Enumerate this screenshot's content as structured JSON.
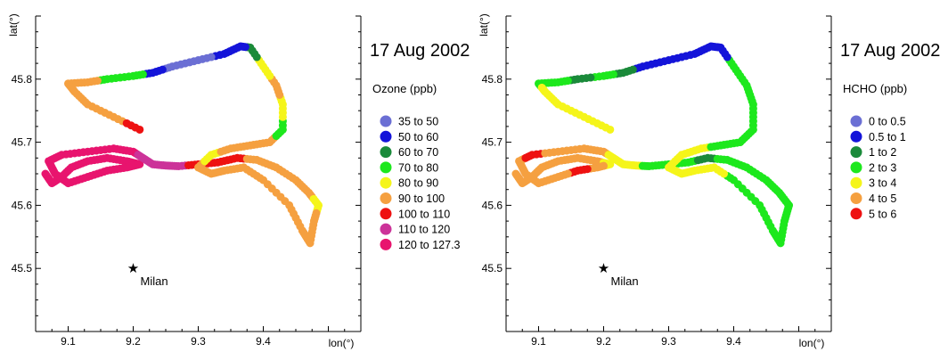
{
  "chart_data": [
    {
      "type": "scatter",
      "title": "17 Aug 2002",
      "xlabel": "lon(°)",
      "ylabel": "lat(°)",
      "xlim": [
        9.05,
        9.55
      ],
      "ylim": [
        45.4,
        45.9
      ],
      "xticks": [
        "9.1",
        "9.2",
        "9.3",
        "9.4"
      ],
      "yticks": [
        "45.5",
        "45.6",
        "45.7",
        "45.8"
      ],
      "legend_title": "Ozone (ppb)",
      "legend": [
        {
          "label": "35 to 50",
          "color": "#6b6fd4"
        },
        {
          "label": "50 to 60",
          "color": "#1414d9"
        },
        {
          "label": "60 to 70",
          "color": "#1a8a3a"
        },
        {
          "label": "70 to 80",
          "color": "#1de81d"
        },
        {
          "label": "80 to 90",
          "color": "#f5f51a"
        },
        {
          "label": "90 to 100",
          "color": "#f5a040"
        },
        {
          "label": "100 to 110",
          "color": "#ee1111"
        },
        {
          "label": "110 to 120",
          "color": "#cc3399"
        },
        {
          "label": "120 to 127.3",
          "color": "#e8146e"
        }
      ],
      "marker": {
        "label": "Milan",
        "lon": 9.2,
        "lat": 45.5
      },
      "track": [
        {
          "lon": 9.065,
          "lat": 45.65,
          "color": "#e8146e"
        },
        {
          "lon": 9.075,
          "lat": 45.635,
          "color": "#e8146e"
        },
        {
          "lon": 9.09,
          "lat": 45.645,
          "color": "#e8146e"
        },
        {
          "lon": 9.105,
          "lat": 45.66,
          "color": "#e8146e"
        },
        {
          "lon": 9.13,
          "lat": 45.67,
          "color": "#e8146e"
        },
        {
          "lon": 9.16,
          "lat": 45.675,
          "color": "#e8146e"
        },
        {
          "lon": 9.19,
          "lat": 45.67,
          "color": "#e8146e"
        },
        {
          "lon": 9.21,
          "lat": 45.665,
          "color": "#e8146e"
        },
        {
          "lon": 9.19,
          "lat": 45.66,
          "color": "#e8146e"
        },
        {
          "lon": 9.16,
          "lat": 45.655,
          "color": "#e8146e"
        },
        {
          "lon": 9.13,
          "lat": 45.645,
          "color": "#e8146e"
        },
        {
          "lon": 9.1,
          "lat": 45.635,
          "color": "#e8146e"
        },
        {
          "lon": 9.08,
          "lat": 45.65,
          "color": "#e8146e"
        },
        {
          "lon": 9.07,
          "lat": 45.67,
          "color": "#e8146e"
        },
        {
          "lon": 9.09,
          "lat": 45.68,
          "color": "#e8146e"
        },
        {
          "lon": 9.13,
          "lat": 45.685,
          "color": "#e8146e"
        },
        {
          "lon": 9.17,
          "lat": 45.69,
          "color": "#e8146e"
        },
        {
          "lon": 9.2,
          "lat": 45.685,
          "color": "#e8146e"
        },
        {
          "lon": 9.215,
          "lat": 45.675,
          "color": "#cc3399"
        },
        {
          "lon": 9.23,
          "lat": 45.665,
          "color": "#cc3399"
        },
        {
          "lon": 9.25,
          "lat": 45.663,
          "color": "#cc3399"
        },
        {
          "lon": 9.27,
          "lat": 45.662,
          "color": "#cc3399"
        },
        {
          "lon": 9.3,
          "lat": 45.665,
          "color": "#ee1111"
        },
        {
          "lon": 9.33,
          "lat": 45.668,
          "color": "#ee1111"
        },
        {
          "lon": 9.36,
          "lat": 45.675,
          "color": "#ee1111"
        },
        {
          "lon": 9.39,
          "lat": 45.672,
          "color": "#f5a040"
        },
        {
          "lon": 9.42,
          "lat": 45.66,
          "color": "#f5a040"
        },
        {
          "lon": 9.45,
          "lat": 45.64,
          "color": "#f5a040"
        },
        {
          "lon": 9.47,
          "lat": 45.62,
          "color": "#f5a040"
        },
        {
          "lon": 9.485,
          "lat": 45.6,
          "color": "#f5f51a"
        },
        {
          "lon": 9.478,
          "lat": 45.575,
          "color": "#f5a040"
        },
        {
          "lon": 9.472,
          "lat": 45.54,
          "color": "#f5a040"
        },
        {
          "lon": 9.46,
          "lat": 45.56,
          "color": "#f5a040"
        },
        {
          "lon": 9.44,
          "lat": 45.6,
          "color": "#f5a040"
        },
        {
          "lon": 9.4,
          "lat": 45.64,
          "color": "#f5a040"
        },
        {
          "lon": 9.37,
          "lat": 45.66,
          "color": "#f5a040"
        },
        {
          "lon": 9.34,
          "lat": 45.655,
          "color": "#f5a040"
        },
        {
          "lon": 9.32,
          "lat": 45.65,
          "color": "#f5a040"
        },
        {
          "lon": 9.3,
          "lat": 45.66,
          "color": "#f5a040"
        },
        {
          "lon": 9.32,
          "lat": 45.68,
          "color": "#f5f51a"
        },
        {
          "lon": 9.35,
          "lat": 45.69,
          "color": "#f5a040"
        },
        {
          "lon": 9.38,
          "lat": 45.695,
          "color": "#f5a040"
        },
        {
          "lon": 9.41,
          "lat": 45.7,
          "color": "#f5a040"
        },
        {
          "lon": 9.43,
          "lat": 45.72,
          "color": "#1de81d"
        },
        {
          "lon": 9.43,
          "lat": 45.76,
          "color": "#f5f51a"
        },
        {
          "lon": 9.42,
          "lat": 45.79,
          "color": "#f5a040"
        },
        {
          "lon": 9.4,
          "lat": 45.82,
          "color": "#f5f51a"
        },
        {
          "lon": 9.38,
          "lat": 45.85,
          "color": "#1a8a3a"
        },
        {
          "lon": 9.365,
          "lat": 45.852,
          "color": "#1414d9"
        },
        {
          "lon": 9.34,
          "lat": 45.84,
          "color": "#1414d9"
        },
        {
          "lon": 9.3,
          "lat": 45.83,
          "color": "#6b6fd4"
        },
        {
          "lon": 9.26,
          "lat": 45.82,
          "color": "#6b6fd4"
        },
        {
          "lon": 9.23,
          "lat": 45.81,
          "color": "#1414d9"
        },
        {
          "lon": 9.2,
          "lat": 45.805,
          "color": "#1de81d"
        },
        {
          "lon": 9.16,
          "lat": 45.8,
          "color": "#1de81d"
        },
        {
          "lon": 9.13,
          "lat": 45.795,
          "color": "#f5a040"
        },
        {
          "lon": 9.1,
          "lat": 45.793,
          "color": "#f5a040"
        },
        {
          "lon": 9.11,
          "lat": 45.78,
          "color": "#f5a040"
        },
        {
          "lon": 9.13,
          "lat": 45.76,
          "color": "#f5a040"
        },
        {
          "lon": 9.17,
          "lat": 45.74,
          "color": "#f5a040"
        },
        {
          "lon": 9.21,
          "lat": 45.72,
          "color": "#ee1111"
        }
      ]
    },
    {
      "type": "scatter",
      "title": "17 Aug 2002",
      "xlabel": "lon(°)",
      "ylabel": "lat(°)",
      "xlim": [
        9.05,
        9.55
      ],
      "ylim": [
        45.4,
        45.9
      ],
      "xticks": [
        "9.1",
        "9.2",
        "9.3",
        "9.4"
      ],
      "yticks": [
        "45.5",
        "45.6",
        "45.7",
        "45.8"
      ],
      "legend_title": "HCHO (ppb)",
      "legend": [
        {
          "label": "0 to 0.5",
          "color": "#6b6fd4"
        },
        {
          "label": "0.5 to 1",
          "color": "#1414d9"
        },
        {
          "label": "1 to 2",
          "color": "#1a8a3a"
        },
        {
          "label": "2 to 3",
          "color": "#1de81d"
        },
        {
          "label": "3 to 4",
          "color": "#f5f51a"
        },
        {
          "label": "4 to 5",
          "color": "#f5a040"
        },
        {
          "label": "5 to 6",
          "color": "#ee1111"
        }
      ],
      "marker": {
        "label": "Milan",
        "lon": 9.2,
        "lat": 45.5
      },
      "track": [
        {
          "lon": 9.065,
          "lat": 45.65,
          "color": "#f5a040"
        },
        {
          "lon": 9.075,
          "lat": 45.635,
          "color": "#f5a040"
        },
        {
          "lon": 9.09,
          "lat": 45.645,
          "color": "#f5a040"
        },
        {
          "lon": 9.105,
          "lat": 45.66,
          "color": "#f5a040"
        },
        {
          "lon": 9.13,
          "lat": 45.67,
          "color": "#f5a040"
        },
        {
          "lon": 9.16,
          "lat": 45.675,
          "color": "#f5a040"
        },
        {
          "lon": 9.19,
          "lat": 45.67,
          "color": "#f5a040"
        },
        {
          "lon": 9.21,
          "lat": 45.665,
          "color": "#f5f51a"
        },
        {
          "lon": 9.19,
          "lat": 45.66,
          "color": "#f5a040"
        },
        {
          "lon": 9.16,
          "lat": 45.655,
          "color": "#ee1111"
        },
        {
          "lon": 9.13,
          "lat": 45.645,
          "color": "#f5a040"
        },
        {
          "lon": 9.1,
          "lat": 45.635,
          "color": "#f5a040"
        },
        {
          "lon": 9.08,
          "lat": 45.65,
          "color": "#f5a040"
        },
        {
          "lon": 9.07,
          "lat": 45.67,
          "color": "#f5a040"
        },
        {
          "lon": 9.09,
          "lat": 45.68,
          "color": "#ee1111"
        },
        {
          "lon": 9.13,
          "lat": 45.685,
          "color": "#f5a040"
        },
        {
          "lon": 9.17,
          "lat": 45.69,
          "color": "#f5a040"
        },
        {
          "lon": 9.2,
          "lat": 45.685,
          "color": "#f5a040"
        },
        {
          "lon": 9.215,
          "lat": 45.675,
          "color": "#f5f51a"
        },
        {
          "lon": 9.23,
          "lat": 45.665,
          "color": "#f5f51a"
        },
        {
          "lon": 9.25,
          "lat": 45.663,
          "color": "#f5f51a"
        },
        {
          "lon": 9.27,
          "lat": 45.662,
          "color": "#1de81d"
        },
        {
          "lon": 9.3,
          "lat": 45.665,
          "color": "#1de81d"
        },
        {
          "lon": 9.33,
          "lat": 45.668,
          "color": "#1de81d"
        },
        {
          "lon": 9.36,
          "lat": 45.675,
          "color": "#1a8a3a"
        },
        {
          "lon": 9.39,
          "lat": 45.672,
          "color": "#1de81d"
        },
        {
          "lon": 9.42,
          "lat": 45.66,
          "color": "#1de81d"
        },
        {
          "lon": 9.45,
          "lat": 45.64,
          "color": "#1de81d"
        },
        {
          "lon": 9.47,
          "lat": 45.62,
          "color": "#1de81d"
        },
        {
          "lon": 9.485,
          "lat": 45.6,
          "color": "#1de81d"
        },
        {
          "lon": 9.478,
          "lat": 45.575,
          "color": "#1de81d"
        },
        {
          "lon": 9.472,
          "lat": 45.54,
          "color": "#1de81d"
        },
        {
          "lon": 9.46,
          "lat": 45.56,
          "color": "#1de81d"
        },
        {
          "lon": 9.44,
          "lat": 45.6,
          "color": "#1de81d"
        },
        {
          "lon": 9.4,
          "lat": 45.64,
          "color": "#1de81d"
        },
        {
          "lon": 9.37,
          "lat": 45.66,
          "color": "#f5f51a"
        },
        {
          "lon": 9.34,
          "lat": 45.655,
          "color": "#f5f51a"
        },
        {
          "lon": 9.32,
          "lat": 45.65,
          "color": "#f5f51a"
        },
        {
          "lon": 9.3,
          "lat": 45.66,
          "color": "#f5f51a"
        },
        {
          "lon": 9.32,
          "lat": 45.68,
          "color": "#f5f51a"
        },
        {
          "lon": 9.35,
          "lat": 45.69,
          "color": "#f5f51a"
        },
        {
          "lon": 9.38,
          "lat": 45.695,
          "color": "#1de81d"
        },
        {
          "lon": 9.41,
          "lat": 45.7,
          "color": "#1de81d"
        },
        {
          "lon": 9.43,
          "lat": 45.72,
          "color": "#1de81d"
        },
        {
          "lon": 9.43,
          "lat": 45.76,
          "color": "#1de81d"
        },
        {
          "lon": 9.42,
          "lat": 45.79,
          "color": "#1de81d"
        },
        {
          "lon": 9.4,
          "lat": 45.82,
          "color": "#1de81d"
        },
        {
          "lon": 9.38,
          "lat": 45.85,
          "color": "#1414d9"
        },
        {
          "lon": 9.365,
          "lat": 45.852,
          "color": "#1414d9"
        },
        {
          "lon": 9.34,
          "lat": 45.84,
          "color": "#1414d9"
        },
        {
          "lon": 9.3,
          "lat": 45.83,
          "color": "#1414d9"
        },
        {
          "lon": 9.26,
          "lat": 45.82,
          "color": "#1414d9"
        },
        {
          "lon": 9.23,
          "lat": 45.81,
          "color": "#1a8a3a"
        },
        {
          "lon": 9.2,
          "lat": 45.805,
          "color": "#1de81d"
        },
        {
          "lon": 9.16,
          "lat": 45.8,
          "color": "#1a8a3a"
        },
        {
          "lon": 9.13,
          "lat": 45.795,
          "color": "#1de81d"
        },
        {
          "lon": 9.1,
          "lat": 45.793,
          "color": "#1de81d"
        },
        {
          "lon": 9.11,
          "lat": 45.78,
          "color": "#f5f51a"
        },
        {
          "lon": 9.13,
          "lat": 45.76,
          "color": "#f5f51a"
        },
        {
          "lon": 9.17,
          "lat": 45.74,
          "color": "#f5f51a"
        },
        {
          "lon": 9.21,
          "lat": 45.72,
          "color": "#f5f51a"
        }
      ]
    }
  ]
}
